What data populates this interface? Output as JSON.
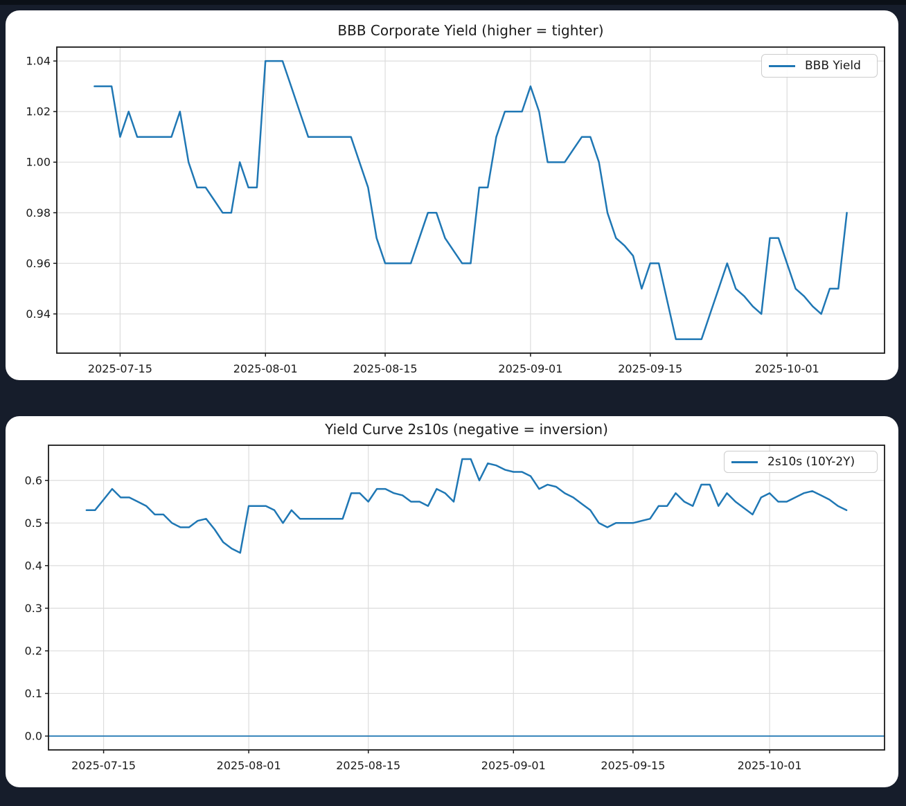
{
  "page": {
    "background": "#161d2b",
    "top_strip_color": "#0b1017",
    "card_background": "#ffffff"
  },
  "chart_data": [
    {
      "type": "line",
      "title": "BBB Corporate Yield (higher = tighter)",
      "legend_position": "upper right",
      "grid": true,
      "line_color": "#1f77b4",
      "ylim": [
        0.9245,
        1.0455
      ],
      "y_tick_labels": [
        "1.04",
        "1.02",
        "1.00",
        "0.98",
        "0.96",
        "0.94"
      ],
      "x_tick_labels": [
        "2025-07-15",
        "2025-08-01",
        "2025-08-15",
        "2025-09-01",
        "2025-09-15",
        "2025-10-01"
      ],
      "series": [
        {
          "name": "BBB Yield",
          "dates": [
            "2025-07-12",
            "2025-07-13",
            "2025-07-14",
            "2025-07-15",
            "2025-07-16",
            "2025-07-17",
            "2025-07-18",
            "2025-07-19",
            "2025-07-20",
            "2025-07-21",
            "2025-07-22",
            "2025-07-23",
            "2025-07-24",
            "2025-07-25",
            "2025-07-26",
            "2025-07-27",
            "2025-07-28",
            "2025-07-29",
            "2025-07-30",
            "2025-07-31",
            "2025-08-01",
            "2025-08-02",
            "2025-08-03",
            "2025-08-04",
            "2025-08-05",
            "2025-08-06",
            "2025-08-07",
            "2025-08-08",
            "2025-08-09",
            "2025-08-10",
            "2025-08-11",
            "2025-08-12",
            "2025-08-13",
            "2025-08-14",
            "2025-08-15",
            "2025-08-16",
            "2025-08-17",
            "2025-08-18",
            "2025-08-19",
            "2025-08-20",
            "2025-08-21",
            "2025-08-22",
            "2025-08-23",
            "2025-08-24",
            "2025-08-25",
            "2025-08-26",
            "2025-08-27",
            "2025-08-28",
            "2025-08-29",
            "2025-08-30",
            "2025-08-31",
            "2025-09-01",
            "2025-09-02",
            "2025-09-03",
            "2025-09-04",
            "2025-09-05",
            "2025-09-06",
            "2025-09-07",
            "2025-09-08",
            "2025-09-09",
            "2025-09-10",
            "2025-09-11",
            "2025-09-12",
            "2025-09-13",
            "2025-09-14",
            "2025-09-15",
            "2025-09-16",
            "2025-09-17",
            "2025-09-18",
            "2025-09-19",
            "2025-09-20",
            "2025-09-21",
            "2025-09-22",
            "2025-09-23",
            "2025-09-24",
            "2025-09-25",
            "2025-09-26",
            "2025-09-27",
            "2025-09-28",
            "2025-09-29",
            "2025-09-30",
            "2025-10-01",
            "2025-10-02",
            "2025-10-03",
            "2025-10-04",
            "2025-10-05",
            "2025-10-06",
            "2025-10-07",
            "2025-10-08"
          ],
          "values": [
            1.03,
            1.03,
            1.03,
            1.01,
            1.02,
            1.01,
            1.01,
            1.01,
            1.01,
            1.01,
            1.02,
            1.0,
            0.99,
            0.99,
            0.985,
            0.98,
            0.98,
            1.0,
            0.99,
            0.99,
            1.04,
            1.04,
            1.04,
            1.03,
            1.02,
            1.01,
            1.01,
            1.01,
            1.01,
            1.01,
            1.01,
            1.0,
            0.99,
            0.97,
            0.96,
            0.96,
            0.96,
            0.96,
            0.97,
            0.98,
            0.98,
            0.97,
            0.965,
            0.96,
            0.96,
            0.99,
            0.99,
            1.01,
            1.02,
            1.02,
            1.02,
            1.03,
            1.02,
            1.0,
            1.0,
            1.0,
            1.005,
            1.01,
            1.01,
            1.0,
            0.98,
            0.97,
            0.967,
            0.963,
            0.95,
            0.96,
            0.96,
            0.945,
            0.93,
            0.93,
            0.93,
            0.93,
            0.94,
            0.95,
            0.96,
            0.95,
            0.947,
            0.943,
            0.94,
            0.97,
            0.97,
            0.96,
            0.95,
            0.947,
            0.943,
            0.94,
            0.95,
            0.95,
            0.98
          ]
        }
      ]
    },
    {
      "type": "line",
      "title": "Yield Curve 2s10s (negative = inversion)",
      "legend_position": "upper right",
      "grid": true,
      "line_color": "#1f77b4",
      "axhline": 0.0,
      "ylim": [
        -0.0325,
        0.6825
      ],
      "y_tick_labels": [
        "0.6",
        "0.5",
        "0.4",
        "0.3",
        "0.2",
        "0.1",
        "0.0"
      ],
      "x_tick_labels": [
        "2025-07-15",
        "2025-08-01",
        "2025-08-15",
        "2025-09-01",
        "2025-09-15",
        "2025-10-01"
      ],
      "series": [
        {
          "name": "2s10s (10Y-2Y)",
          "dates": [
            "2025-07-13",
            "2025-07-14",
            "2025-07-15",
            "2025-07-16",
            "2025-07-17",
            "2025-07-18",
            "2025-07-19",
            "2025-07-20",
            "2025-07-21",
            "2025-07-22",
            "2025-07-23",
            "2025-07-24",
            "2025-07-25",
            "2025-07-26",
            "2025-07-27",
            "2025-07-28",
            "2025-07-29",
            "2025-07-30",
            "2025-07-31",
            "2025-08-01",
            "2025-08-02",
            "2025-08-03",
            "2025-08-04",
            "2025-08-05",
            "2025-08-06",
            "2025-08-07",
            "2025-08-08",
            "2025-08-09",
            "2025-08-10",
            "2025-08-11",
            "2025-08-12",
            "2025-08-13",
            "2025-08-14",
            "2025-08-15",
            "2025-08-16",
            "2025-08-17",
            "2025-08-18",
            "2025-08-19",
            "2025-08-20",
            "2025-08-21",
            "2025-08-22",
            "2025-08-23",
            "2025-08-24",
            "2025-08-25",
            "2025-08-26",
            "2025-08-27",
            "2025-08-28",
            "2025-08-29",
            "2025-08-30",
            "2025-08-31",
            "2025-09-01",
            "2025-09-02",
            "2025-09-03",
            "2025-09-04",
            "2025-09-05",
            "2025-09-06",
            "2025-09-07",
            "2025-09-08",
            "2025-09-09",
            "2025-09-10",
            "2025-09-11",
            "2025-09-12",
            "2025-09-13",
            "2025-09-14",
            "2025-09-15",
            "2025-09-16",
            "2025-09-17",
            "2025-09-18",
            "2025-09-19",
            "2025-09-20",
            "2025-09-21",
            "2025-09-22",
            "2025-09-23",
            "2025-09-24",
            "2025-09-25",
            "2025-09-26",
            "2025-09-27",
            "2025-09-28",
            "2025-09-29",
            "2025-09-30",
            "2025-10-01",
            "2025-10-02",
            "2025-10-03",
            "2025-10-04",
            "2025-10-05",
            "2025-10-06",
            "2025-10-07",
            "2025-10-08",
            "2025-10-09",
            "2025-10-10"
          ],
          "values": [
            0.53,
            0.53,
            0.555,
            0.58,
            0.56,
            0.56,
            0.55,
            0.54,
            0.52,
            0.52,
            0.5,
            0.49,
            0.49,
            0.505,
            0.51,
            0.485,
            0.455,
            0.44,
            0.43,
            0.54,
            0.54,
            0.54,
            0.53,
            0.5,
            0.53,
            0.51,
            0.51,
            0.51,
            0.51,
            0.51,
            0.51,
            0.57,
            0.57,
            0.55,
            0.58,
            0.58,
            0.57,
            0.565,
            0.55,
            0.55,
            0.54,
            0.58,
            0.57,
            0.55,
            0.65,
            0.65,
            0.6,
            0.64,
            0.635,
            0.625,
            0.62,
            0.62,
            0.61,
            0.58,
            0.59,
            0.585,
            0.57,
            0.56,
            0.545,
            0.53,
            0.5,
            0.49,
            0.5,
            0.5,
            0.5,
            0.505,
            0.51,
            0.54,
            0.54,
            0.57,
            0.55,
            0.54,
            0.59,
            0.59,
            0.54,
            0.57,
            0.55,
            0.535,
            0.52,
            0.56,
            0.57,
            0.55,
            0.55,
            0.56,
            0.57,
            0.575,
            0.565,
            0.555,
            0.54,
            0.53
          ]
        }
      ]
    }
  ]
}
